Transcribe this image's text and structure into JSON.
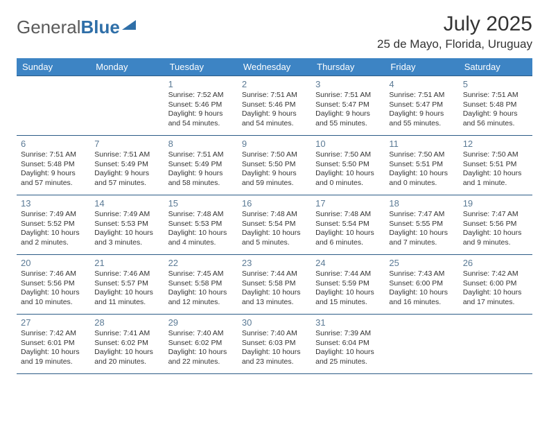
{
  "brand": {
    "part1": "General",
    "part2": "Blue"
  },
  "title": "July 2025",
  "location": "25 de Mayo, Florida, Uruguay",
  "colors": {
    "header_bg": "#3d84c4",
    "header_text": "#ffffff",
    "row_border": "#2a5a85",
    "daynum": "#5b7a95",
    "body_text": "#333333",
    "brand_gray": "#5a5a5a",
    "brand_blue": "#2f6fa8",
    "page_bg": "#ffffff"
  },
  "weekdays": [
    "Sunday",
    "Monday",
    "Tuesday",
    "Wednesday",
    "Thursday",
    "Friday",
    "Saturday"
  ],
  "weeks": [
    [
      null,
      null,
      {
        "n": "1",
        "sr": "Sunrise: 7:52 AM",
        "ss": "Sunset: 5:46 PM",
        "dl": "Daylight: 9 hours and 54 minutes."
      },
      {
        "n": "2",
        "sr": "Sunrise: 7:51 AM",
        "ss": "Sunset: 5:46 PM",
        "dl": "Daylight: 9 hours and 54 minutes."
      },
      {
        "n": "3",
        "sr": "Sunrise: 7:51 AM",
        "ss": "Sunset: 5:47 PM",
        "dl": "Daylight: 9 hours and 55 minutes."
      },
      {
        "n": "4",
        "sr": "Sunrise: 7:51 AM",
        "ss": "Sunset: 5:47 PM",
        "dl": "Daylight: 9 hours and 55 minutes."
      },
      {
        "n": "5",
        "sr": "Sunrise: 7:51 AM",
        "ss": "Sunset: 5:48 PM",
        "dl": "Daylight: 9 hours and 56 minutes."
      }
    ],
    [
      {
        "n": "6",
        "sr": "Sunrise: 7:51 AM",
        "ss": "Sunset: 5:48 PM",
        "dl": "Daylight: 9 hours and 57 minutes."
      },
      {
        "n": "7",
        "sr": "Sunrise: 7:51 AM",
        "ss": "Sunset: 5:49 PM",
        "dl": "Daylight: 9 hours and 57 minutes."
      },
      {
        "n": "8",
        "sr": "Sunrise: 7:51 AM",
        "ss": "Sunset: 5:49 PM",
        "dl": "Daylight: 9 hours and 58 minutes."
      },
      {
        "n": "9",
        "sr": "Sunrise: 7:50 AM",
        "ss": "Sunset: 5:50 PM",
        "dl": "Daylight: 9 hours and 59 minutes."
      },
      {
        "n": "10",
        "sr": "Sunrise: 7:50 AM",
        "ss": "Sunset: 5:50 PM",
        "dl": "Daylight: 10 hours and 0 minutes."
      },
      {
        "n": "11",
        "sr": "Sunrise: 7:50 AM",
        "ss": "Sunset: 5:51 PM",
        "dl": "Daylight: 10 hours and 0 minutes."
      },
      {
        "n": "12",
        "sr": "Sunrise: 7:50 AM",
        "ss": "Sunset: 5:51 PM",
        "dl": "Daylight: 10 hours and 1 minute."
      }
    ],
    [
      {
        "n": "13",
        "sr": "Sunrise: 7:49 AM",
        "ss": "Sunset: 5:52 PM",
        "dl": "Daylight: 10 hours and 2 minutes."
      },
      {
        "n": "14",
        "sr": "Sunrise: 7:49 AM",
        "ss": "Sunset: 5:53 PM",
        "dl": "Daylight: 10 hours and 3 minutes."
      },
      {
        "n": "15",
        "sr": "Sunrise: 7:48 AM",
        "ss": "Sunset: 5:53 PM",
        "dl": "Daylight: 10 hours and 4 minutes."
      },
      {
        "n": "16",
        "sr": "Sunrise: 7:48 AM",
        "ss": "Sunset: 5:54 PM",
        "dl": "Daylight: 10 hours and 5 minutes."
      },
      {
        "n": "17",
        "sr": "Sunrise: 7:48 AM",
        "ss": "Sunset: 5:54 PM",
        "dl": "Daylight: 10 hours and 6 minutes."
      },
      {
        "n": "18",
        "sr": "Sunrise: 7:47 AM",
        "ss": "Sunset: 5:55 PM",
        "dl": "Daylight: 10 hours and 7 minutes."
      },
      {
        "n": "19",
        "sr": "Sunrise: 7:47 AM",
        "ss": "Sunset: 5:56 PM",
        "dl": "Daylight: 10 hours and 9 minutes."
      }
    ],
    [
      {
        "n": "20",
        "sr": "Sunrise: 7:46 AM",
        "ss": "Sunset: 5:56 PM",
        "dl": "Daylight: 10 hours and 10 minutes."
      },
      {
        "n": "21",
        "sr": "Sunrise: 7:46 AM",
        "ss": "Sunset: 5:57 PM",
        "dl": "Daylight: 10 hours and 11 minutes."
      },
      {
        "n": "22",
        "sr": "Sunrise: 7:45 AM",
        "ss": "Sunset: 5:58 PM",
        "dl": "Daylight: 10 hours and 12 minutes."
      },
      {
        "n": "23",
        "sr": "Sunrise: 7:44 AM",
        "ss": "Sunset: 5:58 PM",
        "dl": "Daylight: 10 hours and 13 minutes."
      },
      {
        "n": "24",
        "sr": "Sunrise: 7:44 AM",
        "ss": "Sunset: 5:59 PM",
        "dl": "Daylight: 10 hours and 15 minutes."
      },
      {
        "n": "25",
        "sr": "Sunrise: 7:43 AM",
        "ss": "Sunset: 6:00 PM",
        "dl": "Daylight: 10 hours and 16 minutes."
      },
      {
        "n": "26",
        "sr": "Sunrise: 7:42 AM",
        "ss": "Sunset: 6:00 PM",
        "dl": "Daylight: 10 hours and 17 minutes."
      }
    ],
    [
      {
        "n": "27",
        "sr": "Sunrise: 7:42 AM",
        "ss": "Sunset: 6:01 PM",
        "dl": "Daylight: 10 hours and 19 minutes."
      },
      {
        "n": "28",
        "sr": "Sunrise: 7:41 AM",
        "ss": "Sunset: 6:02 PM",
        "dl": "Daylight: 10 hours and 20 minutes."
      },
      {
        "n": "29",
        "sr": "Sunrise: 7:40 AM",
        "ss": "Sunset: 6:02 PM",
        "dl": "Daylight: 10 hours and 22 minutes."
      },
      {
        "n": "30",
        "sr": "Sunrise: 7:40 AM",
        "ss": "Sunset: 6:03 PM",
        "dl": "Daylight: 10 hours and 23 minutes."
      },
      {
        "n": "31",
        "sr": "Sunrise: 7:39 AM",
        "ss": "Sunset: 6:04 PM",
        "dl": "Daylight: 10 hours and 25 minutes."
      },
      null,
      null
    ]
  ]
}
